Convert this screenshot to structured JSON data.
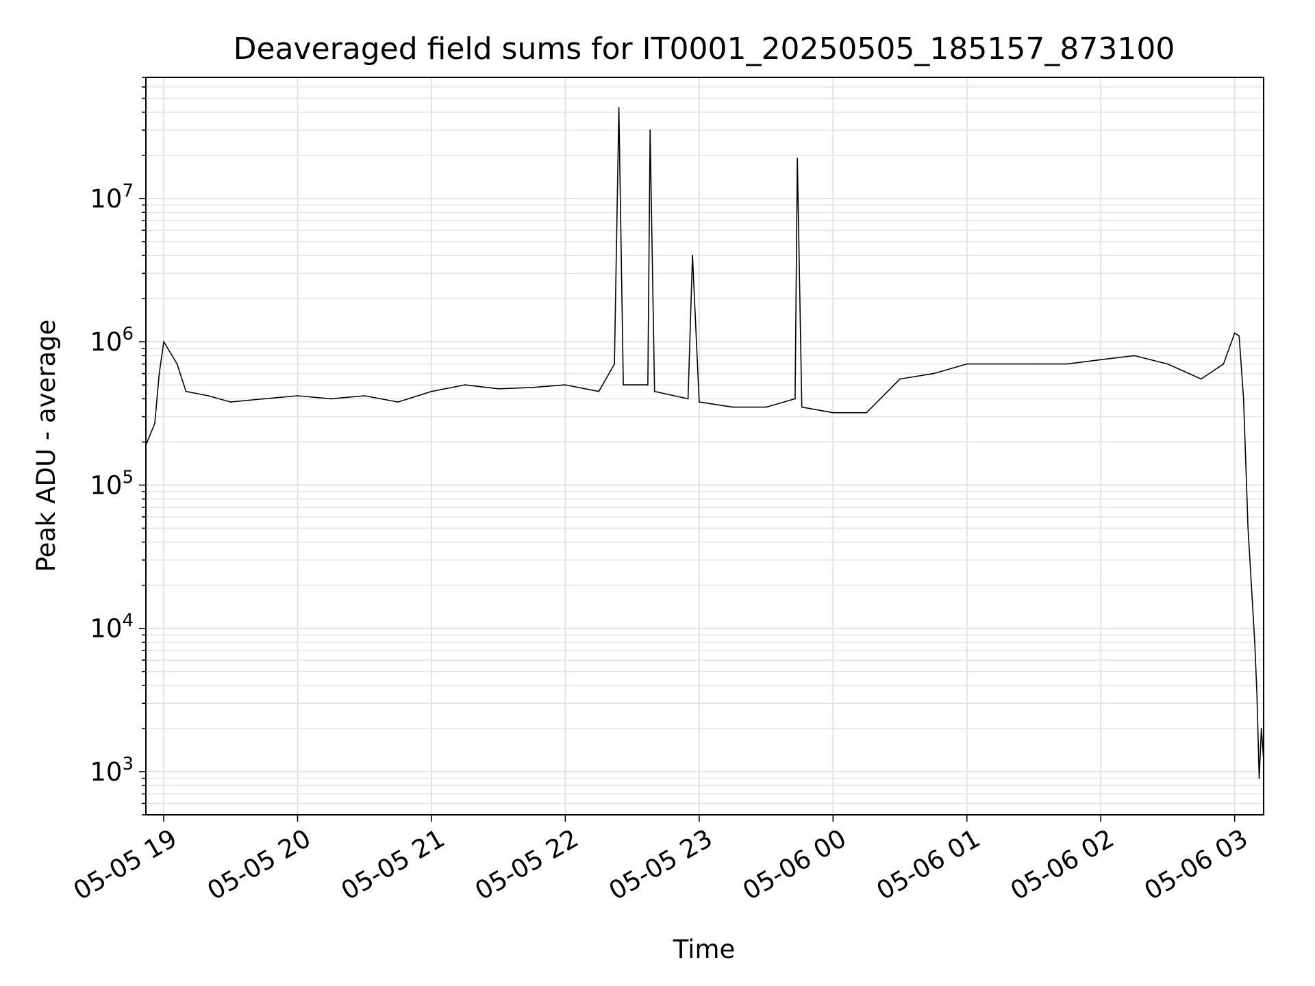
{
  "chart_data": {
    "type": "line",
    "title": "Deaveraged field sums for IT0001_20250505_185157_873100",
    "xlabel": "Time",
    "ylabel": "Peak ADU - average",
    "yscale": "log",
    "grid": true,
    "x_range": [
      "2025-05-05 18:52",
      "2025-05-06 03:13"
    ],
    "y_range": [
      500,
      70000000
    ],
    "x_tick_labels": [
      "05-05 19",
      "05-05 20",
      "05-05 21",
      "05-05 22",
      "05-05 23",
      "05-06 00",
      "05-06 01",
      "05-06 02",
      "05-06 03"
    ],
    "y_ticks": [
      {
        "base": "10",
        "exp": "3",
        "value": 1000
      },
      {
        "base": "10",
        "exp": "4",
        "value": 10000
      },
      {
        "base": "10",
        "exp": "5",
        "value": 100000
      },
      {
        "base": "10",
        "exp": "6",
        "value": 1000000
      },
      {
        "base": "10",
        "exp": "7",
        "value": 10000000
      }
    ],
    "series": [
      {
        "color": "#000000",
        "points": [
          [
            "2025-05-05 18:52",
            190000
          ],
          [
            "2025-05-05 18:56",
            270000
          ],
          [
            "2025-05-05 18:58",
            600000
          ],
          [
            "2025-05-05 19:00",
            1000000
          ],
          [
            "2025-05-05 19:06",
            700000
          ],
          [
            "2025-05-05 19:10",
            450000
          ],
          [
            "2025-05-05 19:20",
            420000
          ],
          [
            "2025-05-05 19:30",
            380000
          ],
          [
            "2025-05-05 19:45",
            400000
          ],
          [
            "2025-05-05 20:00",
            420000
          ],
          [
            "2025-05-05 20:15",
            400000
          ],
          [
            "2025-05-05 20:30",
            420000
          ],
          [
            "2025-05-05 20:45",
            380000
          ],
          [
            "2025-05-05 21:00",
            450000
          ],
          [
            "2025-05-05 21:15",
            500000
          ],
          [
            "2025-05-05 21:30",
            470000
          ],
          [
            "2025-05-05 21:45",
            480000
          ],
          [
            "2025-05-05 22:00",
            500000
          ],
          [
            "2025-05-05 22:15",
            450000
          ],
          [
            "2025-05-05 22:22",
            700000
          ],
          [
            "2025-05-05 22:24",
            43000000
          ],
          [
            "2025-05-05 22:26",
            500000
          ],
          [
            "2025-05-05 22:37",
            500000
          ],
          [
            "2025-05-05 22:38",
            30000000
          ],
          [
            "2025-05-05 22:40",
            450000
          ],
          [
            "2025-05-05 22:55",
            400000
          ],
          [
            "2025-05-05 22:57",
            4000000
          ],
          [
            "2025-05-05 23:00",
            380000
          ],
          [
            "2025-05-05 23:15",
            350000
          ],
          [
            "2025-05-05 23:30",
            350000
          ],
          [
            "2025-05-05 23:43",
            400000
          ],
          [
            "2025-05-05 23:44",
            19000000
          ],
          [
            "2025-05-05 23:46",
            350000
          ],
          [
            "2025-05-06 00:00",
            320000
          ],
          [
            "2025-05-06 00:15",
            320000
          ],
          [
            "2025-05-06 00:30",
            550000
          ],
          [
            "2025-05-06 00:45",
            600000
          ],
          [
            "2025-05-06 01:00",
            700000
          ],
          [
            "2025-05-06 01:15",
            700000
          ],
          [
            "2025-05-06 01:30",
            700000
          ],
          [
            "2025-05-06 01:45",
            700000
          ],
          [
            "2025-05-06 02:00",
            750000
          ],
          [
            "2025-05-06 02:15",
            800000
          ],
          [
            "2025-05-06 02:30",
            700000
          ],
          [
            "2025-05-06 02:45",
            550000
          ],
          [
            "2025-05-06 02:55",
            700000
          ],
          [
            "2025-05-06 03:00",
            1150000
          ],
          [
            "2025-05-06 03:02",
            1100000
          ],
          [
            "2025-05-06 03:04",
            400000
          ],
          [
            "2025-05-06 03:06",
            50000
          ],
          [
            "2025-05-06 03:08",
            15000
          ],
          [
            "2025-05-06 03:09",
            8000
          ],
          [
            "2025-05-06 03:10",
            3500
          ],
          [
            "2025-05-06 03:11",
            900
          ],
          [
            "2025-05-06 03:12",
            2000
          ],
          [
            "2025-05-06 03:13",
            1200
          ]
        ]
      }
    ]
  }
}
